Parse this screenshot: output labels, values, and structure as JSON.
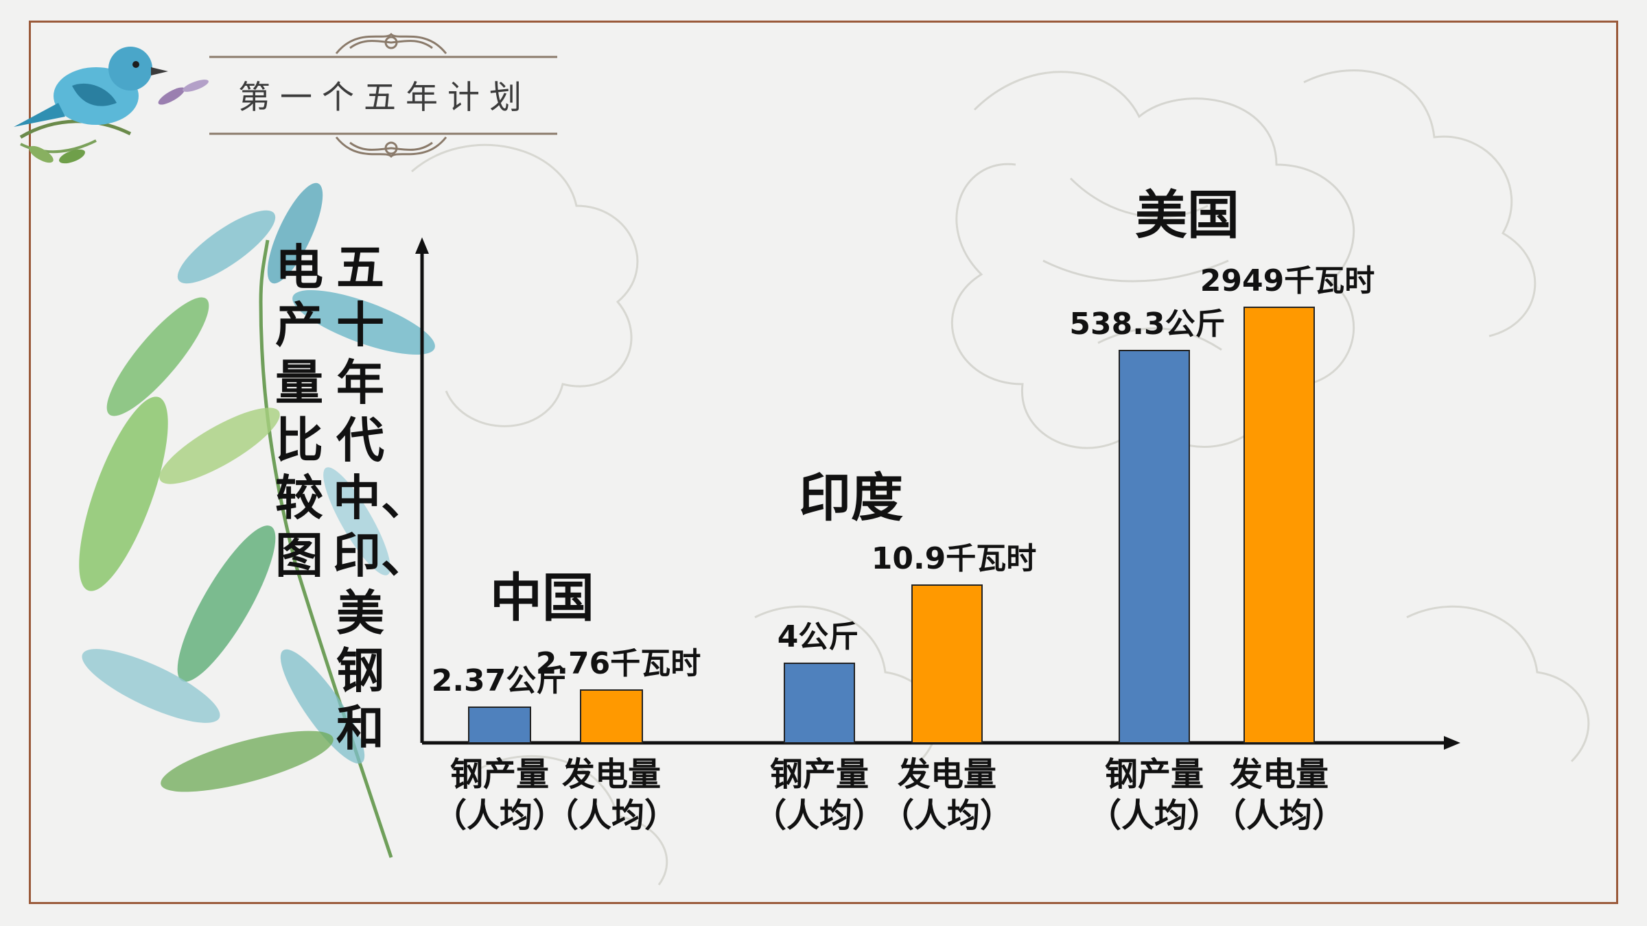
{
  "slide": {
    "header_title": "第一个五年计划",
    "vertical_title": [
      "五十年代中、印、美钢和",
      "电产量比较图"
    ]
  },
  "colors": {
    "steel": "#4f81bd",
    "power": "#ff9900",
    "frame": "#9a5a3a",
    "axis": "#111111"
  },
  "icons": [
    "bird-illustration",
    "leaf-branch-illustration",
    "flower-line-art"
  ],
  "chart_data": {
    "type": "bar",
    "title": "",
    "groups": [
      {
        "country": "中国",
        "bars": [
          {
            "series": "steel",
            "category": "钢产量",
            "sub": "（人均）",
            "value": 2.37,
            "unit": "公斤",
            "label": "2.37公斤"
          },
          {
            "series": "power",
            "category": "发电量",
            "sub": "（人均）",
            "value": 2.76,
            "unit": "千瓦时",
            "label": "2.76千瓦时"
          }
        ]
      },
      {
        "country": "印度",
        "bars": [
          {
            "series": "steel",
            "category": "钢产量",
            "sub": "（人均）",
            "value": 4,
            "unit": "公斤",
            "label": "4公斤"
          },
          {
            "series": "power",
            "category": "发电量",
            "sub": "（人均）",
            "value": 10.9,
            "unit": "千瓦时",
            "label": "10.9千瓦时"
          }
        ]
      },
      {
        "country": "美国",
        "bars": [
          {
            "series": "steel",
            "category": "钢产量",
            "sub": "（人均）",
            "value": 538.3,
            "unit": "公斤",
            "label": "538.3公斤"
          },
          {
            "series": "power",
            "category": "发电量",
            "sub": "（人均）",
            "value": 2949,
            "unit": "千瓦时",
            "label": "2949千瓦时"
          }
        ]
      }
    ],
    "value_scale": "illustrative, not proportional",
    "grid": false,
    "legend": "none"
  }
}
